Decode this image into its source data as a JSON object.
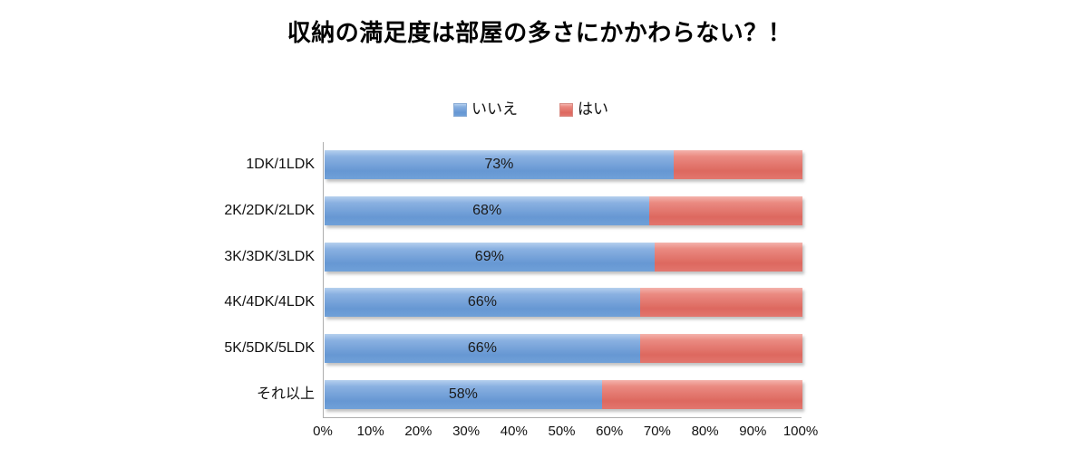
{
  "title": "収納の満足度は部屋の多さにかかわらない？！",
  "legend": {
    "items": [
      {
        "label": "いいえ",
        "color": "#6e9dd6"
      },
      {
        "label": "はい",
        "color": "#e0716a"
      }
    ],
    "position": "top-center"
  },
  "chart_data": {
    "type": "bar",
    "orientation": "horizontal",
    "stacked": true,
    "title": "収納の満足度は部屋の多さにかかわらない？！",
    "categories": [
      "1DK/1LDK",
      "2K/2DK/2LDK",
      "3K/3DK/3LDK",
      "4K/4DK/4LDK",
      "5K/5DK/5LDK",
      "それ以上"
    ],
    "series": [
      {
        "name": "いいえ",
        "color": "#6e9dd6",
        "values": [
          73,
          68,
          69,
          66,
          66,
          58
        ]
      },
      {
        "name": "はい",
        "color": "#e0716a",
        "values": [
          27,
          32,
          31,
          34,
          34,
          42
        ]
      }
    ],
    "data_labels": {
      "series": "いいえ",
      "texts": [
        "73%",
        "68%",
        "69%",
        "66%",
        "66%",
        "58%"
      ]
    },
    "xlabel": "",
    "ylabel": "",
    "xlim": [
      0,
      100
    ],
    "x_ticks": [
      "0%",
      "10%",
      "20%",
      "30%",
      "40%",
      "50%",
      "60%",
      "70%",
      "80%",
      "90%",
      "100%"
    ],
    "grid": false,
    "axis_color": "#aeaeae",
    "background": "#ffffff"
  }
}
